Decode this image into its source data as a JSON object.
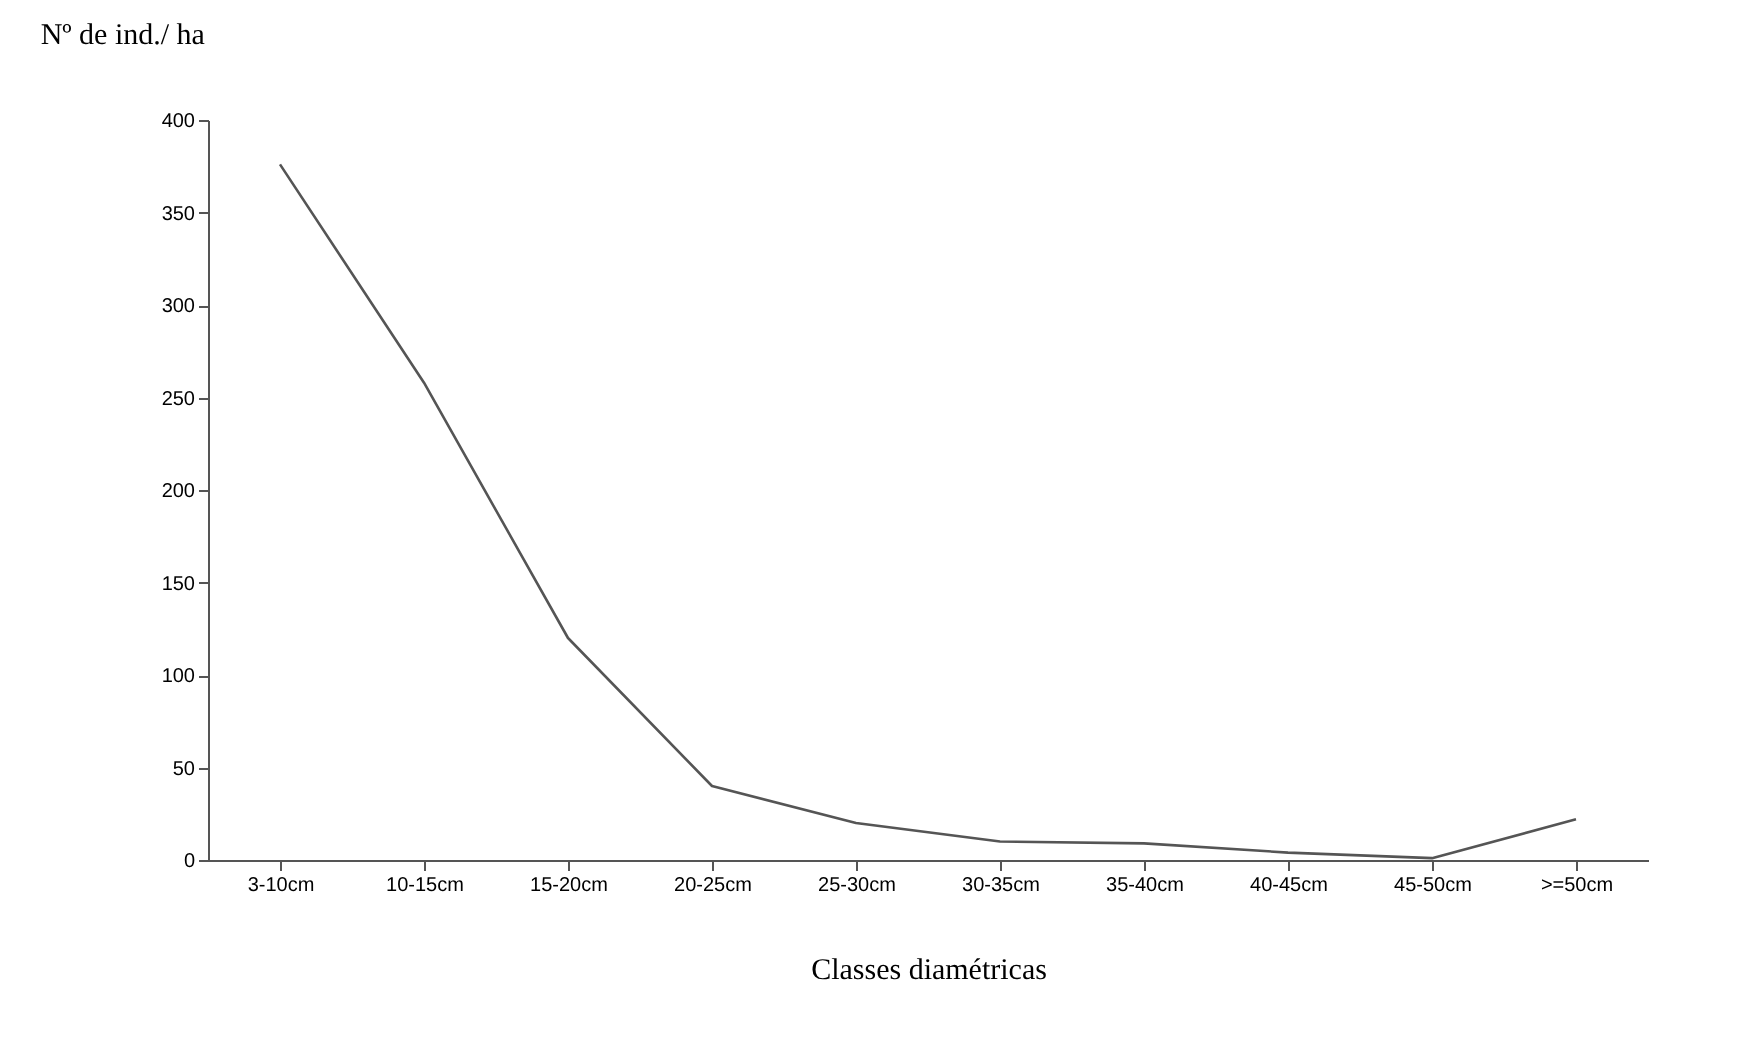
{
  "chart_data": {
    "type": "line",
    "ylabel": "Nº de ind./ ha",
    "xlabel": "Classes diamétricas",
    "categories": [
      "3-10cm",
      "10-15cm",
      "15-20cm",
      "20-25cm",
      "25-30cm",
      "30-35cm",
      "35-40cm",
      "40-45cm",
      "45-50cm",
      ">=50cm"
    ],
    "series": [
      {
        "color": "#555555",
        "values": [
          376,
          258,
          120,
          40,
          20,
          10,
          9,
          4,
          1,
          22
        ]
      }
    ],
    "ylim": [
      0,
      400
    ],
    "yticks": [
      0,
      50,
      100,
      150,
      200,
      250,
      300,
      350,
      400
    ],
    "grid": false,
    "marker": "none",
    "line_style": "solid"
  }
}
